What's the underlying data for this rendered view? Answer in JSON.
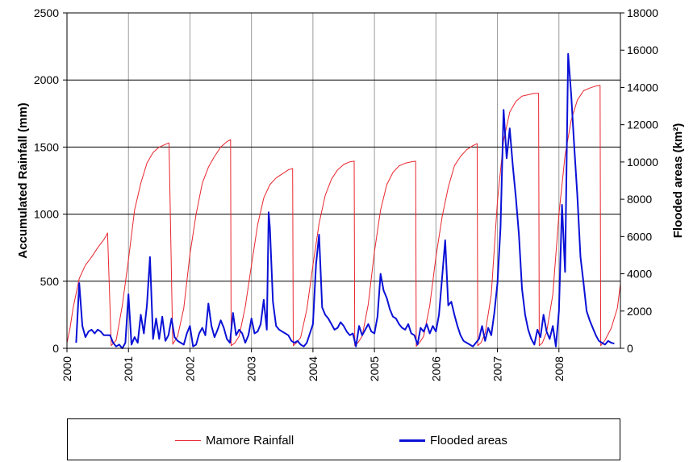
{
  "chart_data": {
    "type": "line",
    "xlabel": "",
    "y_left_label": "Accumulated Rainfall (mm)",
    "y_right_label": "Flooded areas (km²)",
    "x_ticks": [
      "2000",
      "2001",
      "2002",
      "2003",
      "2004",
      "2005",
      "2006",
      "2007",
      "2008"
    ],
    "xlim": [
      2000,
      2009
    ],
    "y_left_ticks": [
      "0",
      "500",
      "1000",
      "1500",
      "2000",
      "2500"
    ],
    "y_left_lim": [
      0,
      2500
    ],
    "y_right_ticks": [
      "0",
      "2000",
      "4000",
      "6000",
      "8000",
      "10000",
      "12000",
      "14000",
      "16000",
      "18000"
    ],
    "y_right_lim": [
      0,
      18000
    ],
    "grid": "vertical lines at years, horizontal lines at left-axis major ticks",
    "legend_position": "bottom",
    "series": [
      {
        "name": "Mamore Rainfall",
        "axis": "left",
        "color": "#e8262e",
        "x": [
          2000.0,
          2000.05,
          2000.1,
          2000.2,
          2000.3,
          2000.4,
          2000.5,
          2000.6,
          2000.65,
          2000.66,
          2000.72,
          2000.8,
          2000.9,
          2001.0,
          2001.1,
          2001.2,
          2001.3,
          2001.4,
          2001.5,
          2001.6,
          2001.65,
          2001.66,
          2001.72,
          2001.8,
          2001.9,
          2002.0,
          2002.1,
          2002.2,
          2002.3,
          2002.4,
          2002.5,
          2002.6,
          2002.66,
          2002.67,
          2002.73,
          2002.8,
          2002.9,
          2003.0,
          2003.1,
          2003.2,
          2003.3,
          2003.4,
          2003.5,
          2003.6,
          2003.67,
          2003.68,
          2003.73,
          2003.8,
          2003.9,
          2004.0,
          2004.1,
          2004.2,
          2004.3,
          2004.4,
          2004.5,
          2004.6,
          2004.67,
          2004.68,
          2004.73,
          2004.8,
          2004.9,
          2005.0,
          2005.1,
          2005.2,
          2005.3,
          2005.4,
          2005.5,
          2005.6,
          2005.67,
          2005.68,
          2005.73,
          2005.8,
          2005.9,
          2006.0,
          2006.1,
          2006.2,
          2006.3,
          2006.4,
          2006.5,
          2006.6,
          2006.67,
          2006.68,
          2006.73,
          2006.8,
          2006.9,
          2007.0,
          2007.1,
          2007.2,
          2007.3,
          2007.4,
          2007.5,
          2007.6,
          2007.67,
          2007.68,
          2007.73,
          2007.8,
          2007.9,
          2008.0,
          2008.1,
          2008.2,
          2008.3,
          2008.4,
          2008.5,
          2008.6,
          2008.67,
          2008.68,
          2008.75,
          2008.85,
          2008.95,
          2009.0
        ],
        "y": [
          40,
          150,
          300,
          520,
          620,
          680,
          750,
          810,
          850,
          860,
          20,
          60,
          320,
          660,
          1030,
          1230,
          1380,
          1460,
          1500,
          1520,
          1530,
          1530,
          30,
          90,
          300,
          700,
          1000,
          1230,
          1350,
          1430,
          1500,
          1540,
          1555,
          20,
          40,
          90,
          310,
          620,
          920,
          1120,
          1220,
          1270,
          1300,
          1330,
          1340,
          20,
          40,
          80,
          290,
          620,
          930,
          1140,
          1260,
          1330,
          1370,
          1390,
          1395,
          20,
          40,
          90,
          330,
          720,
          1030,
          1220,
          1310,
          1360,
          1380,
          1390,
          1395,
          15,
          40,
          90,
          320,
          680,
          980,
          1200,
          1360,
          1430,
          1480,
          1510,
          1525,
          20,
          40,
          110,
          400,
          1100,
          1550,
          1760,
          1840,
          1880,
          1890,
          1900,
          1900,
          20,
          40,
          120,
          400,
          1000,
          1440,
          1700,
          1850,
          1920,
          1940,
          1955,
          1960,
          20,
          60,
          150,
          300,
          480
        ]
      },
      {
        "name": "Flooded areas",
        "axis": "right",
        "color": "#0a11d6",
        "x": [
          2000.15,
          2000.2,
          2000.25,
          2000.3,
          2000.35,
          2000.4,
          2000.45,
          2000.5,
          2000.55,
          2000.6,
          2000.7,
          2000.75,
          2000.8,
          2000.85,
          2000.9,
          2000.95,
          2001.0,
          2001.05,
          2001.1,
          2001.15,
          2001.2,
          2001.25,
          2001.3,
          2001.35,
          2001.4,
          2001.45,
          2001.5,
          2001.55,
          2001.6,
          2001.65,
          2001.7,
          2001.75,
          2001.8,
          2001.85,
          2001.9,
          2001.95,
          2002.0,
          2002.05,
          2002.1,
          2002.15,
          2002.2,
          2002.25,
          2002.3,
          2002.35,
          2002.4,
          2002.45,
          2002.5,
          2002.55,
          2002.6,
          2002.65,
          2002.7,
          2002.75,
          2002.8,
          2002.85,
          2002.9,
          2002.95,
          2003.0,
          2003.05,
          2003.1,
          2003.15,
          2003.2,
          2003.25,
          2003.28,
          2003.3,
          2003.35,
          2003.4,
          2003.45,
          2003.5,
          2003.55,
          2003.6,
          2003.65,
          2003.7,
          2003.75,
          2003.8,
          2003.85,
          2003.9,
          2003.95,
          2004.0,
          2004.05,
          2004.1,
          2004.15,
          2004.2,
          2004.25,
          2004.3,
          2004.35,
          2004.4,
          2004.45,
          2004.5,
          2004.55,
          2004.6,
          2004.65,
          2004.7,
          2004.75,
          2004.8,
          2004.85,
          2004.9,
          2004.95,
          2005.0,
          2005.05,
          2005.1,
          2005.15,
          2005.2,
          2005.25,
          2005.3,
          2005.35,
          2005.4,
          2005.45,
          2005.5,
          2005.55,
          2005.6,
          2005.65,
          2005.7,
          2005.75,
          2005.8,
          2005.85,
          2005.9,
          2005.95,
          2006.0,
          2006.05,
          2006.1,
          2006.15,
          2006.2,
          2006.25,
          2006.3,
          2006.35,
          2006.4,
          2006.45,
          2006.5,
          2006.55,
          2006.6,
          2006.65,
          2006.7,
          2006.75,
          2006.8,
          2006.85,
          2006.9,
          2006.95,
          2007.0,
          2007.05,
          2007.1,
          2007.15,
          2007.2,
          2007.25,
          2007.3,
          2007.35,
          2007.4,
          2007.45,
          2007.5,
          2007.55,
          2007.6,
          2007.65,
          2007.7,
          2007.75,
          2007.8,
          2007.85,
          2007.9,
          2007.95,
          2008.0,
          2008.05,
          2008.1,
          2008.15,
          2008.2,
          2008.25,
          2008.3,
          2008.35,
          2008.4,
          2008.45,
          2008.5,
          2008.55,
          2008.6,
          2008.65,
          2008.7,
          2008.75,
          2008.8,
          2008.85,
          2008.9
        ],
        "y": [
          300,
          3500,
          1200,
          600,
          900,
          1000,
          800,
          1000,
          900,
          700,
          700,
          300,
          100,
          200,
          0,
          300,
          2900,
          200,
          600,
          300,
          1800,
          800,
          2300,
          4900,
          500,
          1600,
          500,
          1700,
          400,
          700,
          1600,
          600,
          400,
          300,
          200,
          800,
          1200,
          100,
          200,
          800,
          1100,
          700,
          2400,
          1200,
          600,
          1000,
          1500,
          1100,
          500,
          300,
          1900,
          700,
          1000,
          800,
          300,
          700,
          1600,
          800,
          900,
          1300,
          2600,
          1000,
          7300,
          6500,
          2500,
          1200,
          1000,
          900,
          800,
          700,
          400,
          300,
          400,
          200,
          100,
          300,
          800,
          1300,
          4500,
          6100,
          2200,
          1800,
          1600,
          1300,
          1000,
          1100,
          1400,
          1200,
          900,
          700,
          800,
          100,
          1200,
          700,
          1000,
          1300,
          900,
          800,
          1700,
          4000,
          3100,
          2700,
          2100,
          1700,
          1600,
          1300,
          1100,
          1000,
          1300,
          800,
          700,
          200,
          1100,
          900,
          1300,
          800,
          1200,
          900,
          1800,
          3800,
          5800,
          2300,
          2500,
          1800,
          1200,
          700,
          400,
          300,
          200,
          100,
          300,
          500,
          1200,
          400,
          1100,
          700,
          1900,
          3500,
          6500,
          12800,
          10200,
          11800,
          9800,
          8100,
          6100,
          3200,
          1800,
          1000,
          500,
          200,
          1000,
          600,
          1800,
          900,
          500,
          1200,
          100,
          2000,
          7700,
          4100,
          15800,
          13600,
          10800,
          8200,
          4900,
          3500,
          2000,
          1500,
          1100,
          700,
          400,
          300,
          200,
          400,
          300,
          250
        ]
      }
    ]
  }
}
